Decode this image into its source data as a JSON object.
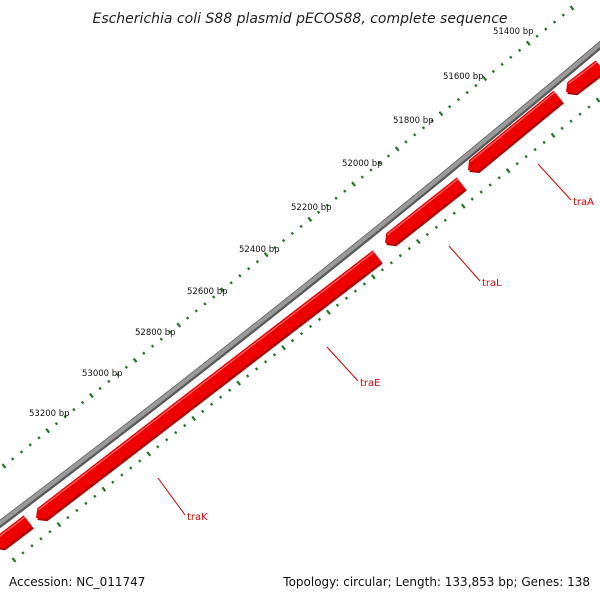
{
  "title": "Escherichia coli S88 plasmid pECOS88, complete sequence",
  "footer": {
    "accession": "Accession: NC_011747",
    "summary": "Topology: circular; Length: 133,853 bp; Genes: 138"
  },
  "scale_labels": [
    "51400 bp",
    "51600 bp",
    "51800 bp",
    "52000 bp",
    "52200 bp",
    "52400 bp",
    "52600 bp",
    "52800 bp",
    "53000 bp",
    "53200 bp"
  ],
  "genes": [
    {
      "name": "traA",
      "strand": "reverse"
    },
    {
      "name": "traL",
      "strand": "reverse"
    },
    {
      "name": "traE",
      "strand": "reverse"
    },
    {
      "name": "traK",
      "strand": "reverse"
    }
  ],
  "colors": {
    "backbone": "#8a8a8a",
    "gene": "#ee0000",
    "gene_shadow": "#b00000",
    "gene_label": "#d40000",
    "ticks": "#1f7a1f"
  }
}
